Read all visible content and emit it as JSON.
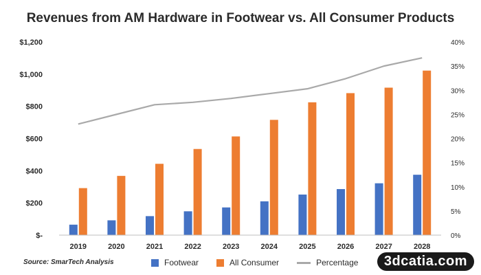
{
  "chart_data": {
    "type": "bar",
    "title": "Revenues from AM Hardware in Footwear vs. All Consumer Products",
    "categories": [
      "2019",
      "2020",
      "2021",
      "2022",
      "2023",
      "2024",
      "2025",
      "2026",
      "2027",
      "2028"
    ],
    "series": [
      {
        "name": "Footwear",
        "kind": "bar",
        "color": "#4472C4",
        "axis": "left",
        "values": [
          65,
          92,
          118,
          148,
          172,
          210,
          252,
          286,
          322,
          375
        ]
      },
      {
        "name": "All Consumer",
        "kind": "bar",
        "color": "#ED7D31",
        "axis": "left",
        "values": [
          292,
          368,
          443,
          535,
          613,
          716,
          825,
          882,
          916,
          1022
        ]
      },
      {
        "name": "Percentage",
        "kind": "line",
        "color": "#A9A9A9",
        "axis": "right",
        "values": [
          23,
          25,
          27,
          27.5,
          28.3,
          29.3,
          30.3,
          32.4,
          35,
          36.7
        ]
      }
    ],
    "y_left": {
      "ylim": [
        0,
        1200
      ],
      "ticks": [
        0,
        200,
        400,
        600,
        800,
        1000,
        1200
      ],
      "tick_labels": [
        "$-",
        "$200",
        "$400",
        "$600",
        "$800",
        "$1,000",
        "$1,200"
      ]
    },
    "y_right": {
      "ylim": [
        0,
        40
      ],
      "ticks": [
        0,
        5,
        10,
        15,
        20,
        25,
        30,
        35,
        40
      ],
      "tick_labels": [
        "0%",
        "5%",
        "10%",
        "15%",
        "20%",
        "25%",
        "30%",
        "35%",
        "40%"
      ]
    },
    "grid": false,
    "legend": "bottom"
  },
  "source": "Source: SmarTech Analysis",
  "watermark": "3dcatia.com"
}
